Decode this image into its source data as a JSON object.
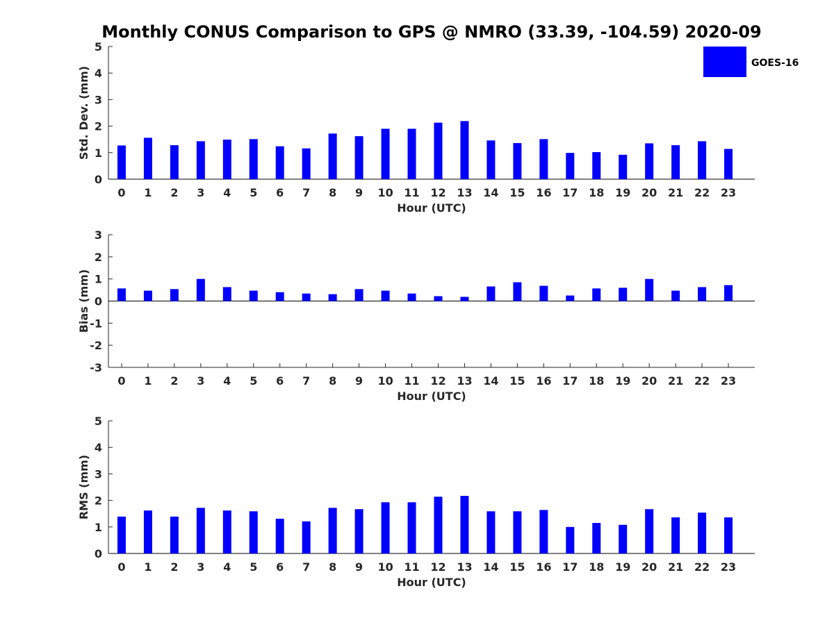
{
  "chart_data": {
    "title": "Monthly CONUS Comparison to GPS @ NMRO (33.39, -104.59) 2020-09",
    "legend": {
      "label": "GOES-16",
      "color": "#0000ff",
      "placement": "top-right"
    },
    "series_color": "#0000ff",
    "axis_color": "#262626",
    "panels": [
      {
        "type": "bar",
        "name": "std-dev",
        "xlabel": "Hour (UTC)",
        "ylabel": "Std. Dev. (mm)",
        "ylim": [
          0,
          5
        ],
        "yticks": [
          0,
          1,
          2,
          3,
          4,
          5
        ],
        "categories": [
          "0",
          "1",
          "2",
          "3",
          "4",
          "5",
          "6",
          "7",
          "8",
          "9",
          "10",
          "11",
          "12",
          "13",
          "14",
          "15",
          "16",
          "17",
          "18",
          "19",
          "20",
          "21",
          "22",
          "23"
        ],
        "series": [
          {
            "name": "GOES-16",
            "values": [
              1.27,
              1.56,
              1.28,
              1.43,
              1.49,
              1.51,
              1.24,
              1.16,
              1.72,
              1.62,
              1.9,
              1.9,
              2.13,
              2.19,
              1.46,
              1.36,
              1.51,
              0.99,
              1.02,
              0.92,
              1.35,
              1.28,
              1.43,
              1.14
            ]
          }
        ]
      },
      {
        "type": "bar",
        "name": "bias",
        "xlabel": "Hour (UTC)",
        "ylabel": "Bias (mm)",
        "ylim": [
          -3,
          3
        ],
        "yticks": [
          -3,
          -2,
          -1,
          0,
          1,
          2,
          3
        ],
        "categories": [
          "0",
          "1",
          "2",
          "3",
          "4",
          "5",
          "6",
          "7",
          "8",
          "9",
          "10",
          "11",
          "12",
          "13",
          "14",
          "15",
          "16",
          "17",
          "18",
          "19",
          "20",
          "21",
          "22",
          "23"
        ],
        "series": [
          {
            "name": "GOES-16",
            "values": [
              0.57,
              0.47,
              0.54,
              1.0,
              0.63,
              0.47,
              0.4,
              0.34,
              0.31,
              0.54,
              0.47,
              0.34,
              0.22,
              0.19,
              0.66,
              0.85,
              0.69,
              0.25,
              0.57,
              0.6,
              1.0,
              0.47,
              0.63,
              0.72
            ]
          }
        ]
      },
      {
        "type": "bar",
        "name": "rms",
        "xlabel": "Hour (UTC)",
        "ylabel": "RMS (mm)",
        "ylim": [
          0,
          5
        ],
        "yticks": [
          0,
          1,
          2,
          3,
          4,
          5
        ],
        "categories": [
          "0",
          "1",
          "2",
          "3",
          "4",
          "5",
          "6",
          "7",
          "8",
          "9",
          "10",
          "11",
          "12",
          "13",
          "14",
          "15",
          "16",
          "17",
          "18",
          "19",
          "20",
          "21",
          "22",
          "23"
        ],
        "series": [
          {
            "name": "GOES-16",
            "values": [
              1.39,
              1.62,
              1.39,
              1.72,
              1.62,
              1.59,
              1.31,
              1.21,
              1.72,
              1.67,
              1.93,
              1.93,
              2.14,
              2.17,
              1.59,
              1.59,
              1.64,
              1.0,
              1.15,
              1.08,
              1.67,
              1.36,
              1.54,
              1.36
            ]
          }
        ]
      }
    ]
  }
}
